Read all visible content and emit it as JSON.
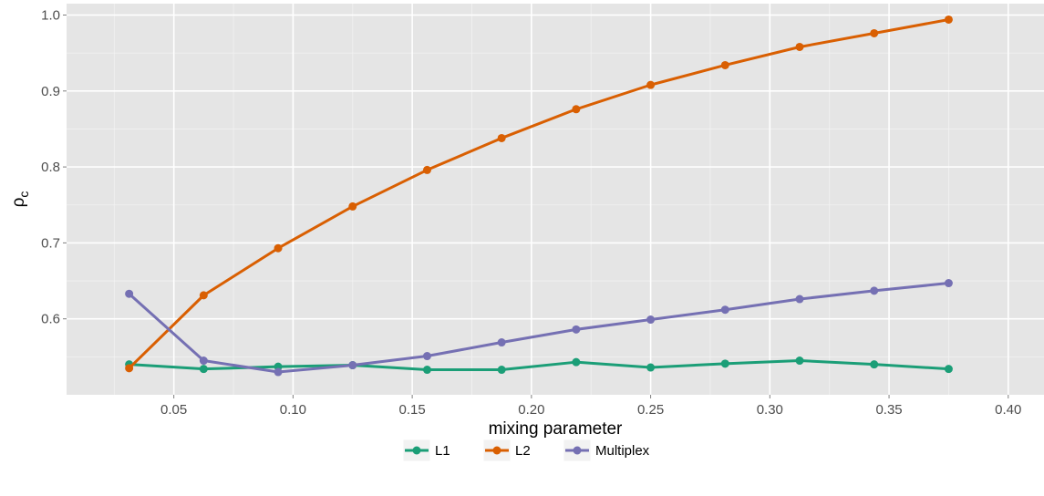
{
  "chart_data": {
    "type": "line",
    "xlabel": "mixing parameter",
    "ylabel_main": "ρ",
    "ylabel_sub": "c",
    "xlim": [
      0.005,
      0.415
    ],
    "ylim": [
      0.5,
      1.015
    ],
    "x_ticks": [
      0.05,
      0.1,
      0.15,
      0.2,
      0.25,
      0.3,
      0.35,
      0.4
    ],
    "x_tick_labels": [
      "0.05",
      "0.10",
      "0.15",
      "0.20",
      "0.25",
      "0.30",
      "0.35",
      "0.40"
    ],
    "y_ticks": [
      0.6,
      0.7,
      0.8,
      0.9,
      1.0
    ],
    "y_tick_labels": [
      "0.6",
      "0.7",
      "0.8",
      "0.9",
      "1.0"
    ],
    "x": [
      0.03125,
      0.0625,
      0.09375,
      0.125,
      0.15625,
      0.1875,
      0.21875,
      0.25,
      0.28125,
      0.3125,
      0.34375,
      0.375
    ],
    "series": [
      {
        "name": "L1",
        "color": "#1b9e77",
        "values": [
          0.54,
          0.534,
          0.537,
          0.539,
          0.533,
          0.533,
          0.543,
          0.536,
          0.541,
          0.545,
          0.54,
          0.534
        ]
      },
      {
        "name": "L2",
        "color": "#d95f02",
        "values": [
          0.535,
          0.631,
          0.693,
          0.748,
          0.796,
          0.838,
          0.876,
          0.908,
          0.934,
          0.958,
          0.976,
          0.994
        ]
      },
      {
        "name": "Multiplex",
        "color": "#7570b3",
        "values": [
          0.633,
          0.545,
          0.53,
          0.539,
          0.551,
          0.569,
          0.586,
          0.599,
          0.612,
          0.626,
          0.637,
          0.647
        ]
      }
    ],
    "grid": true,
    "panel_background": "#e5e5e5",
    "legend_position": "bottom"
  }
}
